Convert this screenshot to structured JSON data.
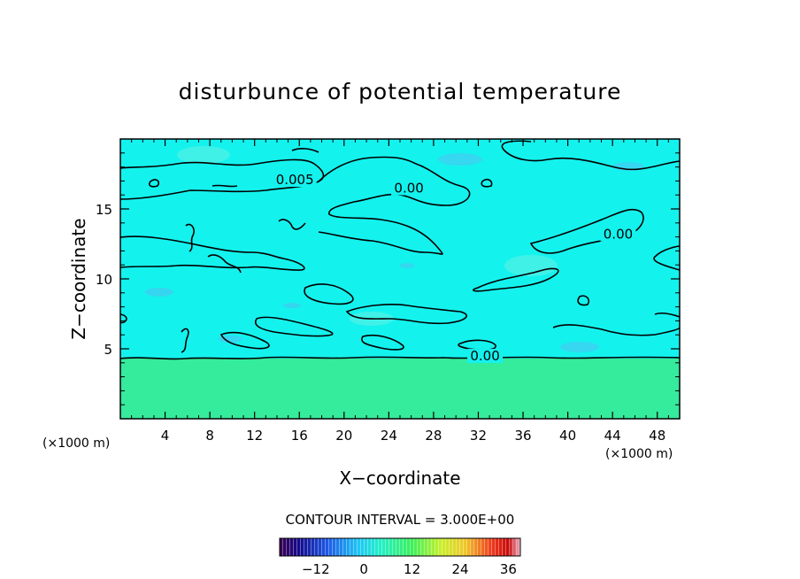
{
  "chart_data": {
    "type": "heatmap",
    "title": "disturbunce of potential temperature",
    "xlabel": "X−coordinate",
    "ylabel": "Z−coordinate",
    "x_unit": "(×1000 m)",
    "y_unit": "(×1000 m)",
    "xlim": [
      0,
      50
    ],
    "ylim": [
      0,
      20
    ],
    "x_ticks": [
      4,
      8,
      12,
      16,
      20,
      24,
      28,
      32,
      36,
      40,
      44,
      48
    ],
    "y_ticks": [
      5,
      10,
      15
    ],
    "contour_interval_label": "CONTOUR INTERVAL = 3.000E+00",
    "contour_labels": [
      {
        "text": "0.00",
        "x": 25.8,
        "y": 16.3
      },
      {
        "text": "0.00",
        "x": 44.5,
        "y": 13.0
      },
      {
        "text": "0.00",
        "x": 32.6,
        "y": 4.3
      },
      {
        "text": "0.005",
        "x": 15.6,
        "y": 16.9
      }
    ],
    "colorbar": {
      "min": -21,
      "max": 39,
      "tick_labels": [
        "−12",
        "0",
        "12",
        "24",
        "36"
      ],
      "tick_values": [
        -12,
        0,
        12,
        24,
        36
      ]
    },
    "colors": {
      "lower_layer": "#35eb9c",
      "upper_layer": "#14f2ee",
      "negative_patch": "#3fcff0",
      "contour": "#000000"
    }
  }
}
